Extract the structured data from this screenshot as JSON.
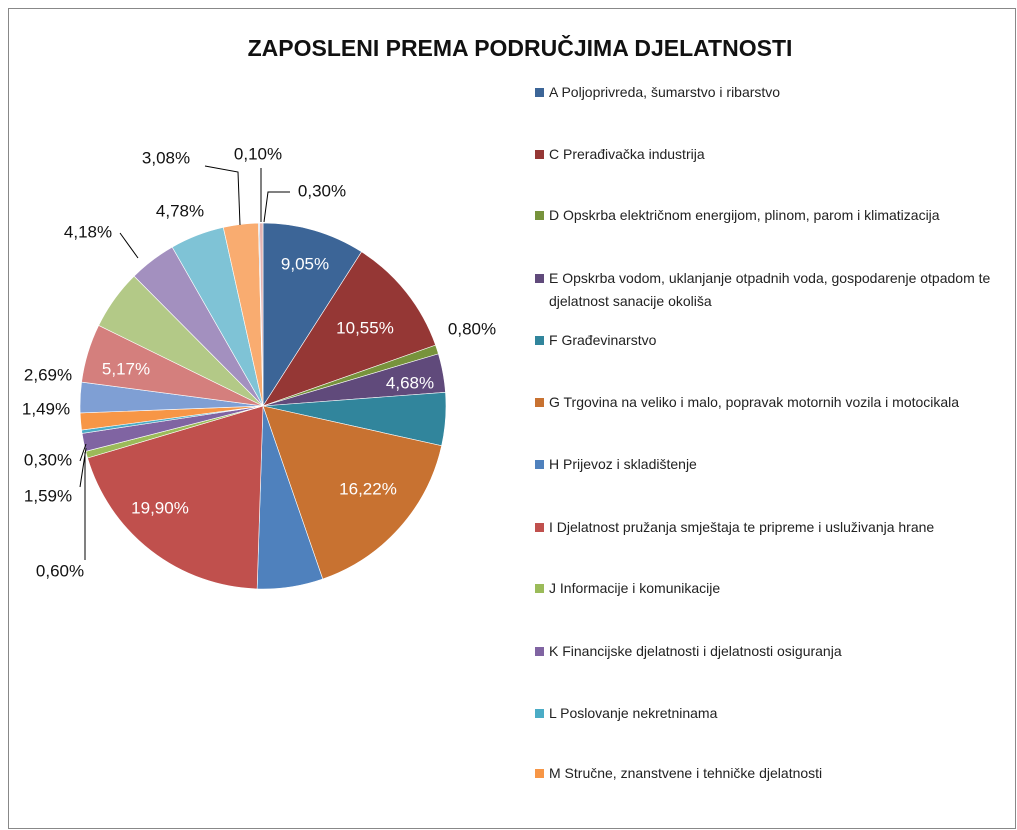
{
  "chart_data": {
    "type": "pie",
    "title": "ZAPOSLENI PREMA PODRUČJIMA DJELATNOSTI",
    "categories": [
      "A Poljoprivreda, šumarstvo i ribarstvo",
      "C Prerađivačka industrija",
      "D Opskrba električnom energijom, plinom, parom i klimatizacija",
      "E Opskrba vodom, uklanjanje otpadnih voda, gospodarenje otpadom te djelatnost sanacije okoliša",
      "F Građevinarstvo",
      "G Trgovina na veliko i malo, popravak motornih vozila i motocikala",
      "H Prijevoz i skladištenje",
      "I Djelatnost pružanja smještaja te pripreme i usluživanja hrane",
      "J Informacije i komunikacije",
      "K Financijske djelatnosti i djelatnosti osiguranja",
      "L Poslovanje nekretninama",
      "M Stručne, znanstvene i tehničke djelatnosti",
      null,
      null,
      null,
      null,
      null,
      null,
      null,
      null
    ],
    "values": [
      9.05,
      10.55,
      0.8,
      3.4,
      4.68,
      16.22,
      5.8,
      19.9,
      0.6,
      1.59,
      0.3,
      1.49,
      2.69,
      5.17,
      5.3,
      4.18,
      4.78,
      3.08,
      0.1,
      0.3
    ],
    "value_labels": [
      "9,05%",
      "10,55%",
      "0,80%",
      null,
      "4,68%",
      "16,22%",
      null,
      "19,90%",
      "0,60%",
      "1,59%",
      "0,30%",
      "1,49%",
      "2,69%",
      "5,17%",
      null,
      "4,18%",
      "4,78%",
      "3,08%",
      "0,10%",
      "0,30%"
    ],
    "colors": [
      "#3C6597",
      "#953735",
      "#77933C",
      "#604A7B",
      "#31859C",
      "#C87231",
      "#4F81BD",
      "#C0504D",
      "#9BBB59",
      "#8064A2",
      "#4BACC6",
      "#F79646",
      "#7F9FD4",
      "#D47F7D",
      "#B3C987",
      "#A390BF",
      "#7FC3D6",
      "#F9AC70",
      "#A9BEDB",
      "#E3B3B2"
    ]
  }
}
